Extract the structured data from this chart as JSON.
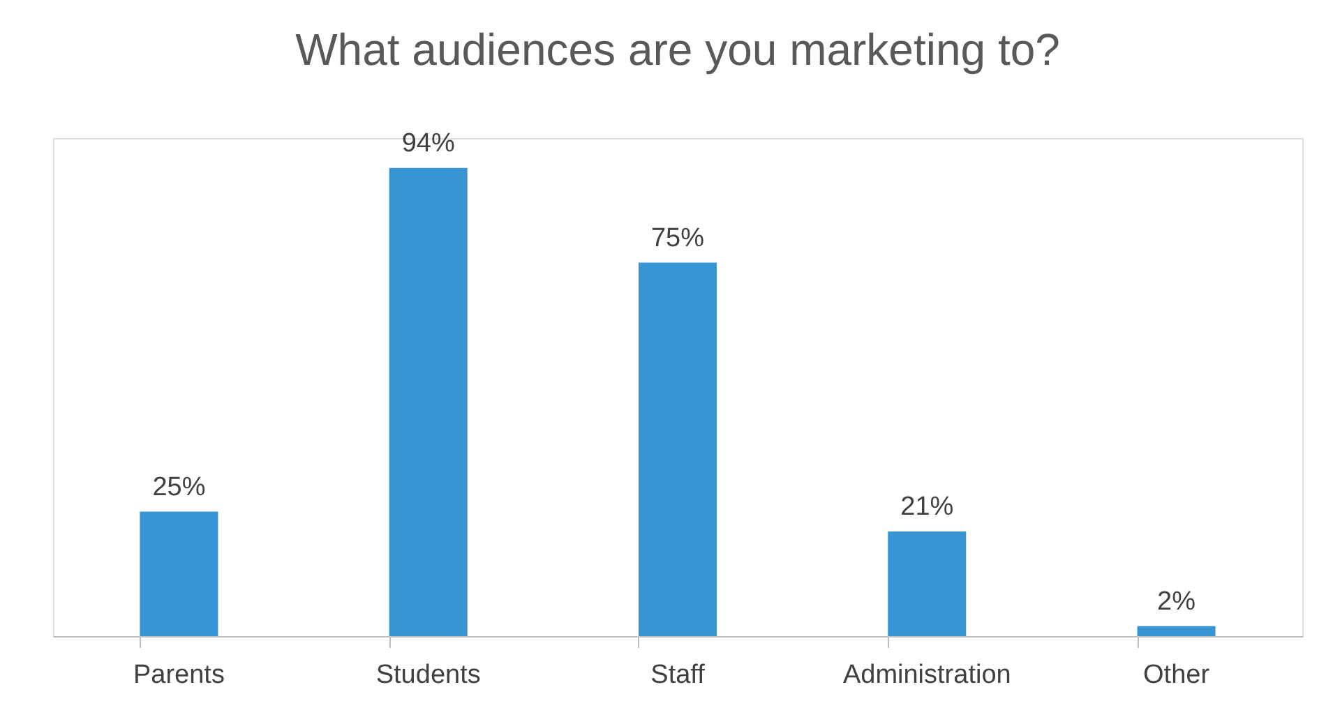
{
  "chart_data": {
    "type": "bar",
    "title": "What audiences are you marketing to?",
    "categories": [
      "Parents",
      "Students",
      "Staff",
      "Administration",
      "Other"
    ],
    "values": [
      25,
      94,
      75,
      21,
      2
    ],
    "value_labels": [
      "25%",
      "94%",
      "75%",
      "21%",
      "2%"
    ],
    "color": "#3795d4",
    "ylim": [
      0,
      100
    ]
  }
}
